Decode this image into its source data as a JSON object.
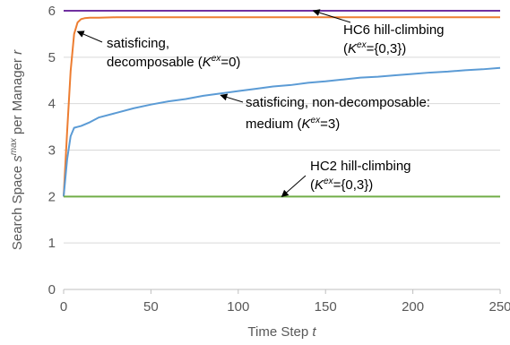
{
  "chart_data": {
    "type": "line",
    "title": "",
    "xlabel": "Time Step",
    "xlabel_var": "t",
    "ylabel": "Search Space",
    "ylabel_var": "s",
    "ylabel_sup": "max",
    "ylabel_suffix": "per Manager",
    "ylabel_var2": "r",
    "xlim": [
      0,
      250
    ],
    "ylim": [
      0,
      6
    ],
    "xticks": [
      0,
      50,
      100,
      150,
      200,
      250
    ],
    "yticks": [
      0,
      1,
      2,
      3,
      4,
      5,
      6
    ],
    "grid": "horizontal",
    "series": [
      {
        "key": "hc6",
        "color": "#7030a0",
        "x": [
          0,
          250
        ],
        "y": [
          6.0,
          6.0
        ]
      },
      {
        "key": "sat_dec",
        "color": "#ed7d31",
        "x": [
          0,
          2,
          4,
          6,
          8,
          10,
          12,
          15,
          20,
          30,
          50,
          100,
          150,
          200,
          250
        ],
        "y": [
          2.0,
          3.4,
          4.7,
          5.5,
          5.75,
          5.82,
          5.84,
          5.85,
          5.85,
          5.86,
          5.86,
          5.86,
          5.86,
          5.86,
          5.86
        ]
      },
      {
        "key": "sat_nondec",
        "color": "#5b9bd5",
        "x": [
          0,
          2,
          4,
          6,
          8,
          10,
          15,
          20,
          30,
          40,
          50,
          60,
          70,
          80,
          90,
          100,
          110,
          120,
          130,
          140,
          150,
          160,
          170,
          180,
          190,
          200,
          210,
          220,
          230,
          240,
          250
        ],
        "y": [
          2.0,
          2.8,
          3.3,
          3.48,
          3.5,
          3.52,
          3.6,
          3.7,
          3.8,
          3.9,
          3.98,
          4.05,
          4.1,
          4.17,
          4.22,
          4.27,
          4.32,
          4.37,
          4.4,
          4.45,
          4.48,
          4.52,
          4.56,
          4.58,
          4.61,
          4.64,
          4.67,
          4.69,
          4.72,
          4.74,
          4.77
        ]
      },
      {
        "key": "hc2",
        "color": "#70ad47",
        "x": [
          0,
          250
        ],
        "y": [
          2.0,
          2.0
        ]
      }
    ],
    "annotations": [
      {
        "key": "hc6",
        "line1": "HC6 hill-climbing",
        "line2_pre": "(",
        "line2_K": "K",
        "line2_sup": "ex",
        "line2_post": "={0,3})",
        "arrow_to": [
          143,
          6.0
        ]
      },
      {
        "key": "sat_dec",
        "line1": "satisficing,",
        "line2_pre": "decomposable (",
        "line2_K": "K",
        "line2_sup": "ex",
        "line2_post": "=0)",
        "arrow_to": [
          8,
          5.55
        ]
      },
      {
        "key": "sat_nondec",
        "line1": "satisficing, non-decomposable:",
        "line2_pre": "medium (",
        "line2_K": "K",
        "line2_sup": "ex",
        "line2_post": "=3)",
        "arrow_to": [
          90,
          4.18
        ]
      },
      {
        "key": "hc2",
        "line1": "HC2 hill-climbing",
        "line2_pre": "(",
        "line2_K": "K",
        "line2_sup": "ex",
        "line2_post": "={0,3})",
        "arrow_to": [
          125,
          2.0
        ]
      }
    ]
  }
}
